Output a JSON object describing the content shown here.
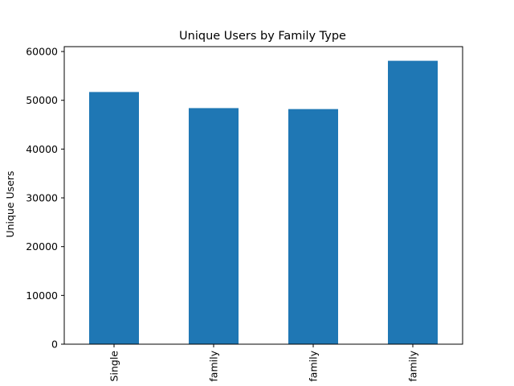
{
  "chart_data": {
    "type": "bar",
    "title": "Unique Users by Family Type",
    "xlabel": "",
    "ylabel": "Unique Users",
    "categories": [
      "Single",
      "family",
      "family",
      "family"
    ],
    "values": [
      51700,
      48400,
      48200,
      58100
    ],
    "ylim": [
      0,
      61000
    ],
    "yticks": [
      0,
      10000,
      20000,
      30000,
      40000,
      50000,
      60000
    ],
    "grid": false,
    "legend": "none",
    "bar_color": "#1f77b4"
  }
}
